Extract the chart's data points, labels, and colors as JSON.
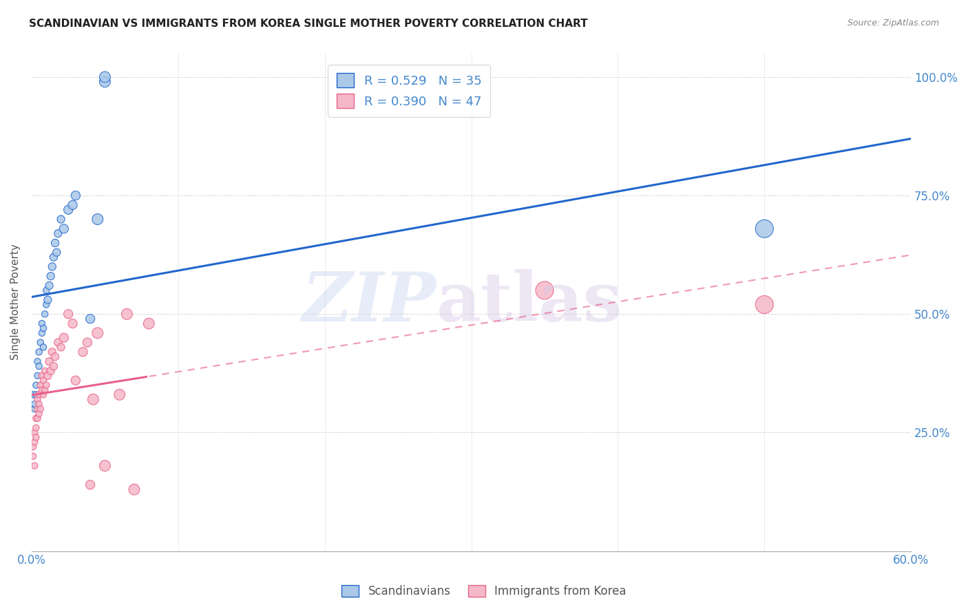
{
  "title": "SCANDINAVIAN VS IMMIGRANTS FROM KOREA SINGLE MOTHER POVERTY CORRELATION CHART",
  "source": "Source: ZipAtlas.com",
  "ylabel": "Single Mother Poverty",
  "xlim": [
    0.0,
    0.6
  ],
  "ylim": [
    0.0,
    1.05
  ],
  "scand_R": 0.529,
  "scand_N": 35,
  "korea_R": 0.39,
  "korea_N": 47,
  "scand_color": "#aac8e8",
  "korea_color": "#f5b8c8",
  "scand_line_color": "#2266cc",
  "korea_line_color": "#e8608a",
  "scand_points": [
    [
      0.001,
      0.33
    ],
    [
      0.002,
      0.3
    ],
    [
      0.002,
      0.31
    ],
    [
      0.003,
      0.35
    ],
    [
      0.003,
      0.33
    ],
    [
      0.004,
      0.37
    ],
    [
      0.004,
      0.4
    ],
    [
      0.005,
      0.39
    ],
    [
      0.005,
      0.42
    ],
    [
      0.006,
      0.44
    ],
    [
      0.007,
      0.46
    ],
    [
      0.007,
      0.48
    ],
    [
      0.008,
      0.43
    ],
    [
      0.008,
      0.47
    ],
    [
      0.009,
      0.5
    ],
    [
      0.01,
      0.52
    ],
    [
      0.01,
      0.55
    ],
    [
      0.011,
      0.53
    ],
    [
      0.012,
      0.56
    ],
    [
      0.013,
      0.58
    ],
    [
      0.014,
      0.6
    ],
    [
      0.015,
      0.62
    ],
    [
      0.016,
      0.65
    ],
    [
      0.017,
      0.63
    ],
    [
      0.018,
      0.67
    ],
    [
      0.02,
      0.7
    ],
    [
      0.022,
      0.68
    ],
    [
      0.025,
      0.72
    ],
    [
      0.028,
      0.73
    ],
    [
      0.03,
      0.75
    ],
    [
      0.04,
      0.49
    ],
    [
      0.045,
      0.7
    ],
    [
      0.05,
      0.99
    ],
    [
      0.05,
      1.0
    ],
    [
      0.5,
      0.68
    ]
  ],
  "korea_points": [
    [
      0.001,
      0.22
    ],
    [
      0.001,
      0.2
    ],
    [
      0.002,
      0.25
    ],
    [
      0.002,
      0.23
    ],
    [
      0.002,
      0.18
    ],
    [
      0.003,
      0.28
    ],
    [
      0.003,
      0.24
    ],
    [
      0.003,
      0.26
    ],
    [
      0.004,
      0.3
    ],
    [
      0.004,
      0.28
    ],
    [
      0.004,
      0.32
    ],
    [
      0.005,
      0.29
    ],
    [
      0.005,
      0.33
    ],
    [
      0.005,
      0.31
    ],
    [
      0.006,
      0.35
    ],
    [
      0.006,
      0.3
    ],
    [
      0.007,
      0.34
    ],
    [
      0.007,
      0.37
    ],
    [
      0.008,
      0.33
    ],
    [
      0.008,
      0.36
    ],
    [
      0.009,
      0.34
    ],
    [
      0.009,
      0.38
    ],
    [
      0.01,
      0.35
    ],
    [
      0.011,
      0.37
    ],
    [
      0.012,
      0.4
    ],
    [
      0.013,
      0.38
    ],
    [
      0.014,
      0.42
    ],
    [
      0.015,
      0.39
    ],
    [
      0.016,
      0.41
    ],
    [
      0.018,
      0.44
    ],
    [
      0.02,
      0.43
    ],
    [
      0.022,
      0.45
    ],
    [
      0.025,
      0.5
    ],
    [
      0.028,
      0.48
    ],
    [
      0.03,
      0.36
    ],
    [
      0.035,
      0.42
    ],
    [
      0.038,
      0.44
    ],
    [
      0.04,
      0.14
    ],
    [
      0.042,
      0.32
    ],
    [
      0.045,
      0.46
    ],
    [
      0.05,
      0.18
    ],
    [
      0.06,
      0.33
    ],
    [
      0.065,
      0.5
    ],
    [
      0.07,
      0.13
    ],
    [
      0.08,
      0.48
    ],
    [
      0.35,
      0.55
    ],
    [
      0.5,
      0.52
    ]
  ]
}
